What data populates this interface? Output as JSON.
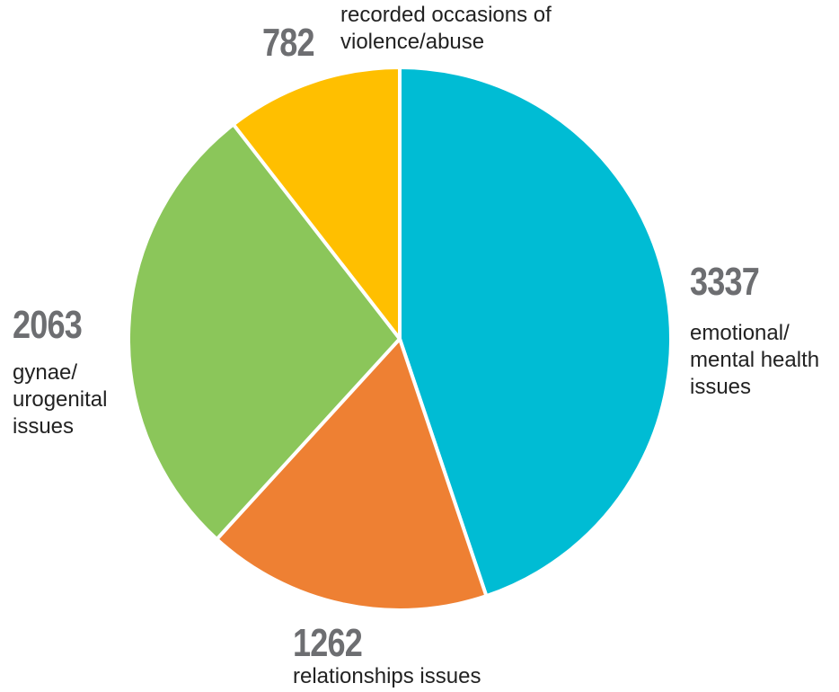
{
  "chart_data": {
    "type": "pie",
    "slices": [
      {
        "value": 3337,
        "value_label": "3337",
        "label": "emotional/\nmental health\nissues",
        "color": "#00bcd4"
      },
      {
        "value": 1262,
        "value_label": "1262",
        "label": "relationships issues",
        "color": "#ee8033"
      },
      {
        "value": 2063,
        "value_label": "2063",
        "label": "gynae/\nurogenital\nissues",
        "color": "#8bc65a"
      },
      {
        "value": 782,
        "value_label": "782",
        "label": "recorded occasions of\nviolence/abuse",
        "color": "#ffbf00"
      }
    ],
    "start": "12 o'clock",
    "direction": "clockwise",
    "legend": "none",
    "slice_border_color": "#ffffff"
  }
}
